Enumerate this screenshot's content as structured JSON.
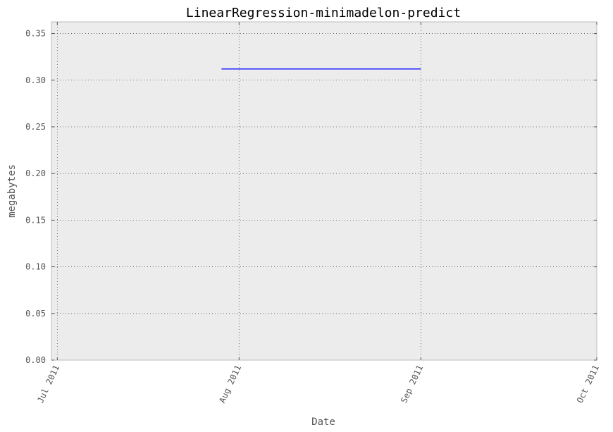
{
  "chart_data": {
    "type": "line",
    "title": "LinearRegression-minimadelon-predict",
    "xlabel": "Date",
    "ylabel": "megabytes",
    "x_ticks": [
      "Jul 2011",
      "Aug 2011",
      "Sep 2011",
      "Oct 2011"
    ],
    "x_tick_dates": [
      "2011-07-01",
      "2011-08-01",
      "2011-09-01",
      "2011-10-01"
    ],
    "xlim": [
      "2011-06-30",
      "2011-10-01"
    ],
    "y_ticks": [
      "0.00",
      "0.05",
      "0.10",
      "0.15",
      "0.20",
      "0.25",
      "0.30",
      "0.35"
    ],
    "ylim": [
      0,
      0.3625
    ],
    "grid": true,
    "series": [
      {
        "color": "#0000ff",
        "x": [
          "2011-07-29",
          "2011-09-01"
        ],
        "y": [
          0.312,
          0.312
        ]
      }
    ],
    "colors": {
      "plot_background": "#ececec",
      "grid": "#555555",
      "frame": "#bcbcbc",
      "text": "#555555",
      "title": "#000000"
    }
  }
}
